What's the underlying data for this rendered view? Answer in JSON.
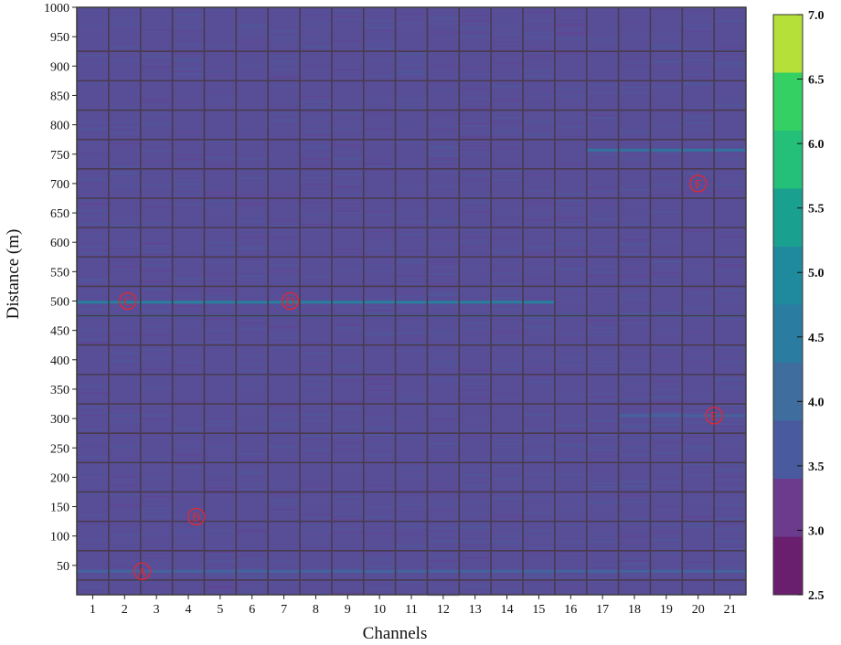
{
  "chart_data": {
    "type": "heatmap",
    "title": "",
    "xlabel": "Channels",
    "ylabel": "Distance (m)",
    "x_ticks": [
      "1",
      "2",
      "3",
      "4",
      "5",
      "6",
      "7",
      "8",
      "9",
      "10",
      "11",
      "12",
      "13",
      "14",
      "15",
      "16",
      "17",
      "18",
      "19",
      "20",
      "21"
    ],
    "y_ticks": [
      "50",
      "100",
      "150",
      "200",
      "250",
      "300",
      "350",
      "400",
      "450",
      "500",
      "550",
      "600",
      "650",
      "700",
      "750",
      "800",
      "850",
      "900",
      "950",
      "1000"
    ],
    "xlim": [
      0.5,
      21.5
    ],
    "ylim": [
      0,
      1000
    ],
    "colorbar": {
      "ticks": [
        "2.5",
        "3.0",
        "3.5",
        "4.0",
        "4.5",
        "5.0",
        "5.5",
        "6.0",
        "6.5",
        "7.0"
      ],
      "range": [
        2.5,
        7.0
      ],
      "colors": [
        "#6a1f6e",
        "#6c3b8e",
        "#4a5a9e",
        "#3f6d9e",
        "#2a7ca0",
        "#1f8a9e",
        "#1aa08e",
        "#24c07a",
        "#35d063",
        "#b5e03a"
      ]
    },
    "background_value": 3.3,
    "features": [
      {
        "distance": 498,
        "channel_from": 1,
        "channel_to": 15,
        "value": 5.0
      },
      {
        "distance": 475,
        "channel_from": 1,
        "channel_to": 21,
        "value": 3.8
      },
      {
        "distance": 757,
        "channel_from": 17,
        "channel_to": 21,
        "value": 4.5
      },
      {
        "distance": 40,
        "channel_from": 1,
        "channel_to": 21,
        "value": 3.9
      },
      {
        "distance": 305,
        "channel_from": 18,
        "channel_to": 21,
        "value": 3.8
      }
    ],
    "annotations": [
      {
        "label": "A",
        "channel": 2.55,
        "distance": 40
      },
      {
        "label": "B",
        "channel": 4.25,
        "distance": 133
      },
      {
        "label": "C",
        "channel": 2.1,
        "distance": 500
      },
      {
        "label": "D",
        "channel": 7.2,
        "distance": 500
      },
      {
        "label": "E",
        "channel": 20.5,
        "distance": 305
      },
      {
        "label": "F",
        "channel": 20.0,
        "distance": 700
      }
    ],
    "grid": true,
    "legend": "none"
  }
}
